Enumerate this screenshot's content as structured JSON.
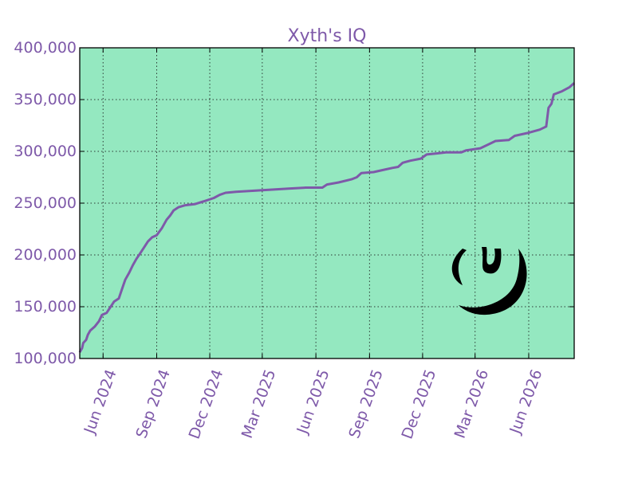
{
  "chart_data": {
    "type": "line",
    "title": "Xyth's IQ",
    "xlabel": "",
    "ylabel": "",
    "x_type": "date",
    "xlim": [
      "2024-04-22",
      "2026-08-18"
    ],
    "ylim": [
      100000,
      400000
    ],
    "grid": true,
    "x_tick_labels": [
      {
        "date": "2024-06-01",
        "label": "Jun 2024"
      },
      {
        "date": "2024-09-01",
        "label": "Sep 2024"
      },
      {
        "date": "2024-12-01",
        "label": "Dec 2024"
      },
      {
        "date": "2025-03-01",
        "label": "Mar 2025"
      },
      {
        "date": "2025-06-01",
        "label": "Jun 2025"
      },
      {
        "date": "2025-09-01",
        "label": "Sep 2025"
      },
      {
        "date": "2025-12-01",
        "label": "Dec 2025"
      },
      {
        "date": "2026-03-01",
        "label": "Mar 2026"
      },
      {
        "date": "2026-06-01",
        "label": "Jun 2026"
      }
    ],
    "y_tick_labels": [
      {
        "value": 100000,
        "label": "100,000"
      },
      {
        "value": 150000,
        "label": "150,000"
      },
      {
        "value": 200000,
        "label": "200,000"
      },
      {
        "value": 250000,
        "label": "250,000"
      },
      {
        "value": 300000,
        "label": "300,000"
      },
      {
        "value": 350000,
        "label": "350,000"
      },
      {
        "value": 400000,
        "label": "400,000"
      }
    ],
    "series": [
      {
        "points": [
          [
            "2024-04-22",
            106000
          ],
          [
            "2024-04-26",
            110000
          ],
          [
            "2024-04-28",
            115000
          ],
          [
            "2024-05-03",
            118000
          ],
          [
            "2024-05-06",
            123000
          ],
          [
            "2024-05-10",
            127000
          ],
          [
            "2024-05-18",
            131000
          ],
          [
            "2024-05-25",
            136000
          ],
          [
            "2024-05-30",
            142000
          ],
          [
            "2024-06-07",
            144000
          ],
          [
            "2024-06-14",
            150000
          ],
          [
            "2024-06-20",
            155000
          ],
          [
            "2024-06-28",
            158000
          ],
          [
            "2024-07-04",
            168000
          ],
          [
            "2024-07-09",
            176000
          ],
          [
            "2024-07-16",
            183000
          ],
          [
            "2024-07-22",
            190000
          ],
          [
            "2024-07-28",
            196000
          ],
          [
            "2024-08-03",
            201000
          ],
          [
            "2024-08-10",
            207000
          ],
          [
            "2024-08-17",
            213000
          ],
          [
            "2024-08-24",
            217000
          ],
          [
            "2024-09-01",
            219000
          ],
          [
            "2024-09-10",
            226000
          ],
          [
            "2024-09-18",
            234000
          ],
          [
            "2024-09-24",
            238000
          ],
          [
            "2024-09-30",
            243000
          ],
          [
            "2024-10-08",
            246000
          ],
          [
            "2024-10-20",
            248000
          ],
          [
            "2024-11-05",
            249000
          ],
          [
            "2024-11-22",
            252000
          ],
          [
            "2024-12-08",
            255000
          ],
          [
            "2024-12-18",
            258000
          ],
          [
            "2024-12-28",
            260000
          ],
          [
            "2025-01-15",
            261000
          ],
          [
            "2025-02-15",
            262000
          ],
          [
            "2025-03-15",
            263000
          ],
          [
            "2025-04-15",
            264000
          ],
          [
            "2025-05-15",
            265000
          ],
          [
            "2025-06-12",
            265000
          ],
          [
            "2025-06-20",
            268000
          ],
          [
            "2025-07-10",
            270000
          ],
          [
            "2025-08-01",
            273000
          ],
          [
            "2025-08-10",
            275000
          ],
          [
            "2025-08-18",
            279000
          ],
          [
            "2025-09-08",
            280000
          ],
          [
            "2025-09-24",
            282000
          ],
          [
            "2025-10-10",
            284000
          ],
          [
            "2025-10-20",
            285000
          ],
          [
            "2025-10-28",
            289000
          ],
          [
            "2025-11-10",
            291000
          ],
          [
            "2025-11-28",
            293000
          ],
          [
            "2025-12-08",
            297000
          ],
          [
            "2025-12-25",
            298000
          ],
          [
            "2026-01-10",
            299000
          ],
          [
            "2026-02-05",
            299000
          ],
          [
            "2026-02-14",
            301000
          ],
          [
            "2026-03-10",
            303000
          ],
          [
            "2026-03-25",
            307000
          ],
          [
            "2026-04-05",
            310000
          ],
          [
            "2026-04-28",
            311000
          ],
          [
            "2026-05-08",
            315000
          ],
          [
            "2026-06-01",
            318000
          ],
          [
            "2026-06-20",
            321000
          ],
          [
            "2026-07-01",
            324000
          ],
          [
            "2026-07-05",
            342000
          ],
          [
            "2026-07-10",
            346000
          ],
          [
            "2026-07-14",
            355000
          ],
          [
            "2026-07-28",
            358000
          ],
          [
            "2026-08-10",
            362000
          ],
          [
            "2026-08-18",
            366000
          ]
        ]
      }
    ]
  },
  "colors": {
    "line": "#7e59a9",
    "text": "#7e59a9",
    "plot_background": "#94e8c0",
    "grid": "#2b3a33",
    "axes_frame": "#000000",
    "logo": "#000000"
  },
  "watermark_icon": "spiral-logo-icon"
}
